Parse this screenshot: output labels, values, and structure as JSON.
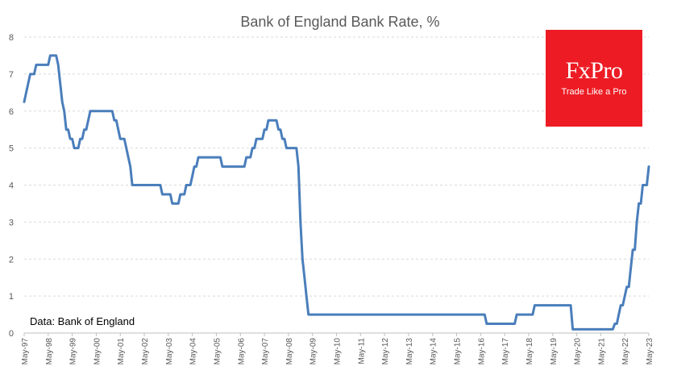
{
  "chart_data": {
    "type": "line",
    "title": "Bank of England Bank Rate, %",
    "annotation": "Data: Bank of England",
    "xlabel": "",
    "ylabel": "",
    "ylim": [
      0,
      8
    ],
    "y_ticks": [
      0,
      1,
      2,
      3,
      4,
      5,
      6,
      7,
      8
    ],
    "x_ticks": [
      "May-97",
      "May-98",
      "May-99",
      "May-00",
      "May-01",
      "May-02",
      "May-03",
      "May-04",
      "May-05",
      "May-06",
      "May-07",
      "May-08",
      "May-09",
      "May-10",
      "May-11",
      "May-12",
      "May-13",
      "May-14",
      "May-15",
      "May-16",
      "May-17",
      "May-18",
      "May-19",
      "May-20",
      "May-21",
      "May-22",
      "May-23"
    ],
    "grid": true,
    "legend": "none",
    "series_color": "#4a7ebb",
    "series": [
      {
        "points": [
          [
            "1997-05",
            6.25
          ],
          [
            "1997-06",
            6.5
          ],
          [
            "1997-07",
            6.75
          ],
          [
            "1997-08",
            7.0
          ],
          [
            "1997-11",
            7.25
          ],
          [
            "1998-06",
            7.5
          ],
          [
            "1998-10",
            7.25
          ],
          [
            "1998-11",
            6.75
          ],
          [
            "1998-12",
            6.25
          ],
          [
            "1999-01",
            6.0
          ],
          [
            "1999-02",
            5.5
          ],
          [
            "1999-04",
            5.25
          ],
          [
            "1999-06",
            5.0
          ],
          [
            "1999-09",
            5.25
          ],
          [
            "1999-11",
            5.5
          ],
          [
            "2000-01",
            5.75
          ],
          [
            "2000-02",
            6.0
          ],
          [
            "2001-02",
            5.75
          ],
          [
            "2001-04",
            5.5
          ],
          [
            "2001-05",
            5.25
          ],
          [
            "2001-08",
            5.0
          ],
          [
            "2001-09",
            4.75
          ],
          [
            "2001-10",
            4.5
          ],
          [
            "2001-11",
            4.0
          ],
          [
            "2003-02",
            3.75
          ],
          [
            "2003-07",
            3.5
          ],
          [
            "2003-11",
            3.75
          ],
          [
            "2004-02",
            4.0
          ],
          [
            "2004-05",
            4.25
          ],
          [
            "2004-06",
            4.5
          ],
          [
            "2004-08",
            4.75
          ],
          [
            "2005-08",
            4.5
          ],
          [
            "2006-08",
            4.75
          ],
          [
            "2006-11",
            5.0
          ],
          [
            "2007-01",
            5.25
          ],
          [
            "2007-05",
            5.5
          ],
          [
            "2007-07",
            5.75
          ],
          [
            "2007-12",
            5.5
          ],
          [
            "2008-02",
            5.25
          ],
          [
            "2008-04",
            5.0
          ],
          [
            "2008-10",
            4.5
          ],
          [
            "2008-11",
            3.0
          ],
          [
            "2008-12",
            2.0
          ],
          [
            "2009-01",
            1.5
          ],
          [
            "2009-02",
            1.0
          ],
          [
            "2009-03",
            0.5
          ],
          [
            "2016-08",
            0.25
          ],
          [
            "2017-11",
            0.5
          ],
          [
            "2018-08",
            0.75
          ],
          [
            "2020-03",
            0.1
          ],
          [
            "2021-12",
            0.25
          ],
          [
            "2022-02",
            0.5
          ],
          [
            "2022-03",
            0.75
          ],
          [
            "2022-05",
            1.0
          ],
          [
            "2022-06",
            1.25
          ],
          [
            "2022-08",
            1.75
          ],
          [
            "2022-09",
            2.25
          ],
          [
            "2022-11",
            3.0
          ],
          [
            "2022-12",
            3.5
          ],
          [
            "2023-02",
            4.0
          ],
          [
            "2023-05",
            4.5
          ]
        ]
      }
    ]
  },
  "logo": {
    "word": "FxPro",
    "tagline": "Trade Like a Pro",
    "color": "#ed1c24"
  }
}
